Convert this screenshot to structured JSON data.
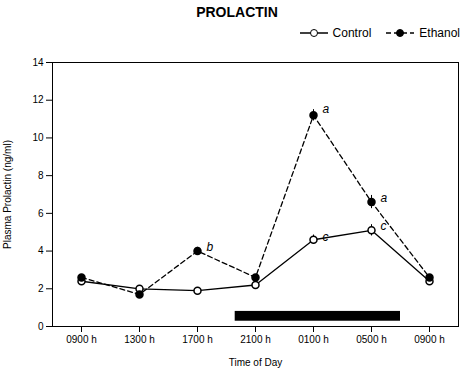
{
  "chart_data": {
    "type": "line",
    "title": "PROLACTIN",
    "x_label": "Time of Day",
    "y_label": "Plasma Prolactin (ng/ml)",
    "categories": [
      "0900 h",
      "1300 h",
      "1700 h",
      "2100 h",
      "0100 h",
      "0500 h",
      "0900 h"
    ],
    "series": [
      {
        "name": "Control",
        "color": "black",
        "marker": "open circle",
        "line_style": "solid",
        "values": [
          2.4,
          2.0,
          1.9,
          2.2,
          4.6,
          5.1,
          2.4
        ],
        "errors": [
          0.15,
          0.1,
          0.1,
          0.15,
          0.25,
          0.3,
          0.15
        ]
      },
      {
        "name": "Ethanol",
        "color": "black",
        "marker": "filled circle",
        "line_style": "dashed",
        "values": [
          2.6,
          1.7,
          4.0,
          2.6,
          11.2,
          6.6,
          2.6
        ],
        "errors": [
          0.15,
          0.1,
          0.2,
          0.15,
          0.3,
          0.35,
          0.15
        ]
      }
    ],
    "ylim": [
      0,
      14
    ],
    "yticks": [
      0,
      2,
      4,
      6,
      8,
      10,
      12,
      14
    ],
    "annotations": [
      {
        "text": "a",
        "x": 4,
        "y": 11.55
      },
      {
        "text": "b",
        "x": 2,
        "y": 4.2
      },
      {
        "text": "c",
        "x": 4,
        "y": 4.75
      },
      {
        "text": "a",
        "x": 5,
        "y": 6.8
      },
      {
        "text": "c",
        "x": 5,
        "y": 5.3
      }
    ],
    "dark_bar": {
      "x": [
        2.65,
        5.5
      ],
      "y": [
        0.28,
        0.8
      ],
      "color": "black"
    },
    "legend": "upper right"
  }
}
